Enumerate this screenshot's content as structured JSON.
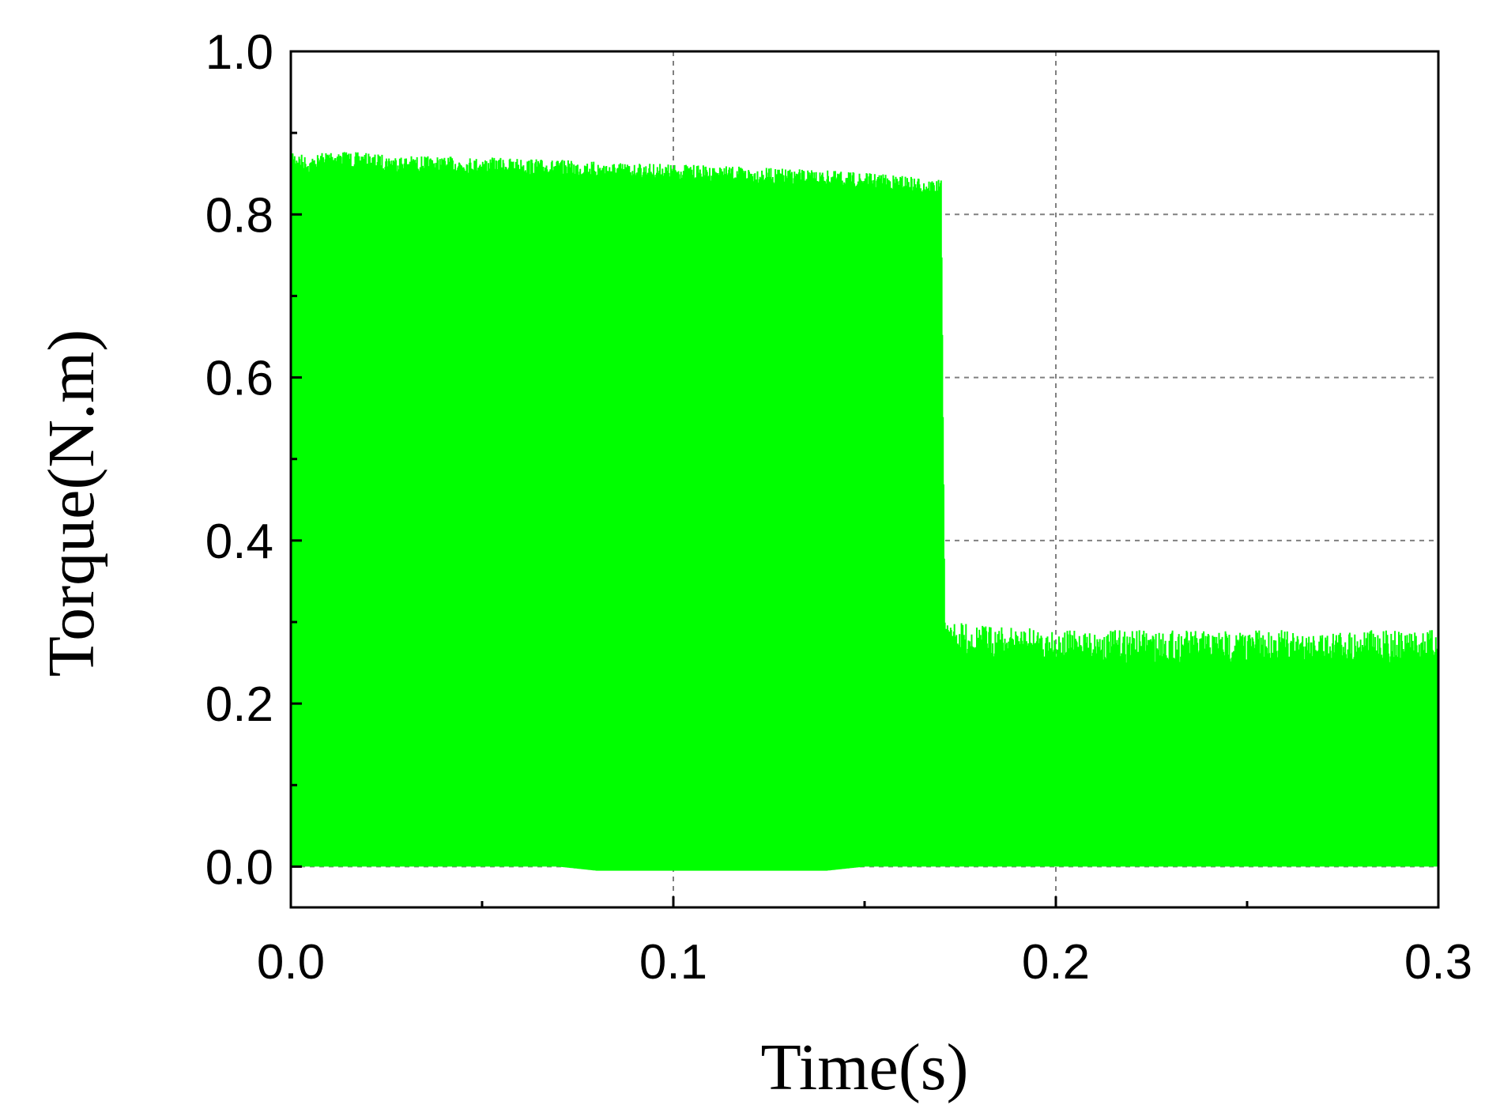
{
  "chart_data": {
    "type": "line",
    "title": "",
    "xlabel": "Time(s)",
    "ylabel": "Torque(N.m)",
    "xlim": [
      0.0,
      0.3
    ],
    "ylim": [
      -0.05,
      1.0
    ],
    "x_ticks": [
      0.0,
      0.1,
      0.2,
      0.3
    ],
    "x_tick_labels": [
      "0.0",
      "0.1",
      "0.2",
      "0.3"
    ],
    "y_ticks": [
      0.0,
      0.2,
      0.4,
      0.6,
      0.8,
      1.0
    ],
    "y_tick_labels": [
      "0.0",
      "0.2",
      "0.4",
      "0.6",
      "0.8",
      "1.0"
    ],
    "grid": true,
    "legend": "none",
    "color": "#00ff00",
    "series": [
      {
        "x": [
          0.0,
          0.005,
          0.01,
          0.02,
          0.03,
          0.04,
          0.05,
          0.06,
          0.07,
          0.08,
          0.09,
          0.1,
          0.11,
          0.12,
          0.13,
          0.14,
          0.15,
          0.16,
          0.17,
          0.171,
          0.2,
          0.25,
          0.3
        ],
        "upper": [
          0.88,
          0.87,
          0.88,
          0.875,
          0.872,
          0.871,
          0.87,
          0.869,
          0.867,
          0.865,
          0.863,
          0.862,
          0.86,
          0.858,
          0.856,
          0.854,
          0.851,
          0.848,
          0.842,
          0.3,
          0.29,
          0.29,
          0.29
        ],
        "lower": [
          0.0,
          0.0,
          0.0,
          0.0,
          0.0,
          0.0,
          0.0,
          0.0,
          0.0,
          -0.005,
          -0.005,
          -0.005,
          -0.005,
          -0.005,
          -0.005,
          -0.005,
          0.0,
          0.0,
          0.0,
          0.0,
          0.0,
          0.0,
          0.0
        ]
      }
    ]
  }
}
